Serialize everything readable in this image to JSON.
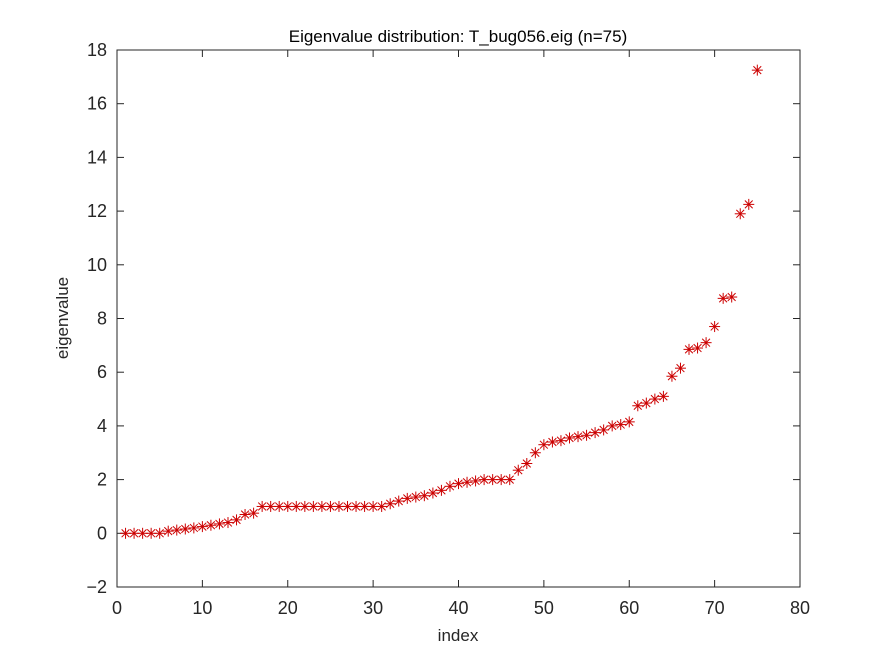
{
  "chart_data": {
    "type": "scatter",
    "title": "Eigenvalue distribution: T_bug056.eig (n=75)",
    "xlabel": "index",
    "ylabel": "eigenvalue",
    "xlim": [
      0,
      80
    ],
    "ylim": [
      -2,
      18
    ],
    "x_ticks": [
      0,
      10,
      20,
      30,
      40,
      50,
      60,
      70,
      80
    ],
    "y_ticks": [
      -2,
      0,
      2,
      4,
      6,
      8,
      10,
      12,
      14,
      16,
      18
    ],
    "grid": false,
    "marker": "*",
    "marker_color": "#cc0000",
    "series": [
      {
        "x": [
          1,
          2,
          3,
          4,
          5,
          6,
          7,
          8,
          9,
          10,
          11,
          12,
          13,
          14,
          15,
          16,
          17,
          18,
          19,
          20,
          21,
          22,
          23,
          24,
          25,
          26,
          27,
          28,
          29,
          30,
          31,
          32,
          33,
          34,
          35,
          36,
          37,
          38,
          39,
          40,
          41,
          42,
          43,
          44,
          45,
          46,
          47,
          48,
          49,
          50,
          51,
          52,
          53,
          54,
          55,
          56,
          57,
          58,
          59,
          60,
          61,
          62,
          63,
          64,
          65,
          66,
          67,
          68,
          69,
          70,
          71,
          72,
          73,
          74,
          75
        ],
        "y": [
          0,
          0,
          0,
          0,
          0,
          0.08,
          0.12,
          0.16,
          0.2,
          0.25,
          0.3,
          0.35,
          0.4,
          0.5,
          0.7,
          0.75,
          1,
          1,
          1,
          1,
          1,
          1,
          1,
          1,
          1,
          1,
          1,
          1,
          1,
          1,
          1,
          1.1,
          1.2,
          1.3,
          1.35,
          1.4,
          1.5,
          1.6,
          1.75,
          1.85,
          1.9,
          1.95,
          2,
          2,
          2,
          2,
          2.35,
          2.6,
          3,
          3.3,
          3.4,
          3.45,
          3.55,
          3.6,
          3.65,
          3.75,
          3.85,
          4,
          4.05,
          4.15,
          4.75,
          4.85,
          5,
          5.1,
          5.85,
          6.15,
          6.85,
          6.9,
          7.1,
          7.7,
          8.75,
          8.8,
          11.9,
          12.25,
          17.25
        ]
      }
    ]
  }
}
